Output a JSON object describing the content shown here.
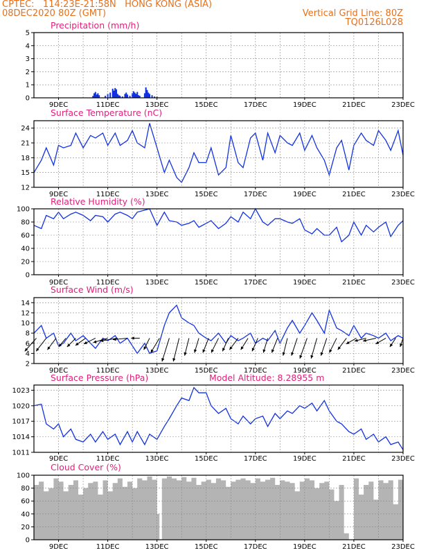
{
  "header": {
    "left_line1": "CPTEC:   114:23E-21:58N   HONG KONG (ASIA)",
    "left_line2": "08DEC2020 80Z (GMT)",
    "right_line1": "Vertical Grid Line: 80Z",
    "right_line2": "TQ0126L028"
  },
  "colors": {
    "header": "#e8701a",
    "title": "#e0207a",
    "line": "#1030e0",
    "cloud": "#b4b4b4"
  },
  "x_axis": {
    "start_day": 8.0,
    "end_day": 23.0,
    "tick_labels": [
      "9DEC",
      "11DEC",
      "13DEC",
      "15DEC",
      "17DEC",
      "19DEC",
      "21DEC",
      "23DEC"
    ],
    "tick_days": [
      9,
      11,
      13,
      15,
      17,
      19,
      21,
      23
    ]
  },
  "chart_data": [
    {
      "id": "precip",
      "type": "bar",
      "title": "Precipitation (mm/h)",
      "ylim": [
        0,
        5
      ],
      "yticks": [
        0,
        1,
        2,
        3,
        4,
        5
      ],
      "x": [
        10.4,
        10.45,
        10.5,
        10.55,
        10.6,
        10.65,
        10.9,
        11.0,
        11.1,
        11.2,
        11.25,
        11.3,
        11.35,
        11.4,
        11.45,
        11.5,
        11.6,
        11.7,
        11.75,
        11.8,
        11.9,
        12.0,
        12.05,
        12.1,
        12.15,
        12.2,
        12.25,
        12.3,
        12.5,
        12.55,
        12.6,
        12.65,
        12.7,
        12.8,
        12.9,
        13.0
      ],
      "values": [
        0.15,
        0.35,
        0.45,
        0.25,
        0.35,
        0.2,
        0.15,
        0.3,
        0.4,
        0.7,
        0.55,
        0.75,
        0.65,
        0.3,
        0.2,
        0.15,
        0.1,
        0.3,
        0.4,
        0.25,
        0.15,
        0.35,
        0.5,
        0.4,
        0.3,
        0.45,
        0.2,
        0.15,
        0.35,
        0.8,
        0.6,
        0.4,
        0.3,
        0.2,
        0.1,
        0.1
      ]
    },
    {
      "id": "temp",
      "type": "line",
      "title": "Surface Temperature (nC)",
      "ylim": [
        12,
        25.5
      ],
      "yticks": [
        12,
        15,
        18,
        21,
        24
      ],
      "x": [
        8.0,
        8.3,
        8.5,
        8.8,
        9.0,
        9.2,
        9.5,
        9.7,
        10.0,
        10.3,
        10.5,
        10.8,
        11.0,
        11.3,
        11.5,
        11.8,
        12.0,
        12.2,
        12.5,
        12.7,
        13.0,
        13.3,
        13.5,
        13.8,
        14.0,
        14.3,
        14.5,
        14.7,
        15.0,
        15.2,
        15.5,
        15.8,
        16.0,
        16.3,
        16.5,
        16.8,
        17.0,
        17.3,
        17.5,
        17.8,
        18.0,
        18.3,
        18.5,
        18.8,
        19.0,
        19.3,
        19.5,
        19.8,
        20.0,
        20.3,
        20.5,
        20.8,
        21.0,
        21.3,
        21.5,
        21.8,
        22.0,
        22.3,
        22.5,
        22.8,
        23.0
      ],
      "values": [
        15.0,
        17.5,
        20.0,
        16.5,
        20.5,
        20.0,
        20.5,
        23.0,
        20.0,
        22.5,
        22.0,
        23.0,
        20.5,
        23.0,
        20.5,
        21.5,
        23.5,
        21.0,
        20.0,
        25.0,
        20.0,
        15.0,
        17.5,
        14.0,
        13.0,
        16.0,
        19.0,
        17.0,
        17.0,
        20.0,
        14.5,
        16.0,
        22.5,
        17.0,
        16.0,
        22.0,
        23.0,
        17.5,
        23.0,
        19.0,
        22.5,
        21.0,
        20.5,
        23.0,
        19.5,
        22.5,
        20.0,
        17.5,
        14.5,
        20.0,
        21.5,
        15.5,
        20.5,
        23.0,
        21.5,
        20.5,
        23.5,
        21.5,
        19.5,
        23.5,
        18.5
      ]
    },
    {
      "id": "rh",
      "type": "line",
      "title": "Relative Humidity (%)",
      "ylim": [
        0,
        100
      ],
      "yticks": [
        0,
        20,
        40,
        60,
        80,
        100
      ],
      "x": [
        8.0,
        8.3,
        8.5,
        8.8,
        9.0,
        9.2,
        9.5,
        9.7,
        10.0,
        10.3,
        10.5,
        10.8,
        11.0,
        11.3,
        11.5,
        11.8,
        12.0,
        12.2,
        12.5,
        12.7,
        13.0,
        13.3,
        13.5,
        13.8,
        14.0,
        14.3,
        14.5,
        14.7,
        15.0,
        15.2,
        15.5,
        15.8,
        16.0,
        16.3,
        16.5,
        16.8,
        17.0,
        17.3,
        17.5,
        17.8,
        18.0,
        18.3,
        18.5,
        18.8,
        19.0,
        19.3,
        19.5,
        19.8,
        20.0,
        20.3,
        20.5,
        20.8,
        21.0,
        21.3,
        21.5,
        21.8,
        22.0,
        22.3,
        22.5,
        22.8,
        23.0
      ],
      "values": [
        75,
        70,
        90,
        85,
        95,
        85,
        92,
        95,
        90,
        82,
        90,
        88,
        80,
        92,
        95,
        90,
        85,
        95,
        98,
        100,
        75,
        95,
        82,
        80,
        75,
        78,
        82,
        72,
        78,
        82,
        70,
        78,
        88,
        80,
        95,
        85,
        100,
        80,
        75,
        85,
        85,
        80,
        78,
        85,
        68,
        62,
        70,
        60,
        60,
        72,
        50,
        60,
        80,
        60,
        75,
        65,
        72,
        80,
        58,
        75,
        82
      ]
    },
    {
      "id": "wind",
      "type": "line",
      "title": "Surface Wind (m/s)",
      "ylim": [
        2,
        15
      ],
      "yticks": [
        2,
        4,
        6,
        8,
        10,
        12,
        14
      ],
      "x": [
        8.0,
        8.3,
        8.5,
        8.8,
        9.0,
        9.2,
        9.5,
        9.7,
        10.0,
        10.3,
        10.5,
        10.8,
        11.0,
        11.3,
        11.5,
        11.8,
        12.0,
        12.2,
        12.5,
        12.7,
        13.0,
        13.3,
        13.5,
        13.8,
        14.0,
        14.3,
        14.5,
        14.7,
        15.0,
        15.2,
        15.5,
        15.8,
        16.0,
        16.3,
        16.5,
        16.8,
        17.0,
        17.3,
        17.5,
        17.8,
        18.0,
        18.3,
        18.5,
        18.8,
        19.0,
        19.3,
        19.5,
        19.8,
        20.0,
        20.3,
        20.5,
        20.8,
        21.0,
        21.3,
        21.5,
        21.8,
        22.0,
        22.3,
        22.5,
        22.8,
        23.0
      ],
      "values": [
        8.0,
        9.5,
        7.0,
        8.0,
        5.5,
        6.0,
        8.0,
        6.5,
        7.5,
        6.0,
        5.0,
        7.0,
        6.5,
        7.5,
        6.0,
        7.0,
        5.5,
        4.0,
        6.0,
        4.0,
        4.5,
        9.5,
        12.0,
        13.5,
        11.0,
        10.0,
        9.5,
        8.0,
        7.0,
        6.5,
        8.0,
        6.0,
        7.5,
        6.5,
        7.0,
        8.0,
        6.0,
        7.0,
        6.5,
        8.5,
        6.0,
        9.0,
        10.5,
        8.0,
        9.5,
        12.0,
        10.5,
        8.0,
        12.5,
        9.0,
        8.5,
        7.5,
        9.5,
        7.0,
        8.0,
        7.5,
        7.0,
        8.0,
        6.5,
        7.5,
        7.0
      ]
    },
    {
      "id": "pressure",
      "type": "line",
      "title": "Surface Pressure (hPa)",
      "subtitle": "Model Altitude: 8.28955 m",
      "ylim": [
        1011,
        1024
      ],
      "yticks": [
        1011,
        1014,
        1017,
        1020,
        1023
      ],
      "x": [
        8.0,
        8.3,
        8.5,
        8.8,
        9.0,
        9.2,
        9.5,
        9.7,
        10.0,
        10.3,
        10.5,
        10.8,
        11.0,
        11.3,
        11.5,
        11.8,
        12.0,
        12.2,
        12.5,
        12.7,
        13.0,
        13.3,
        13.5,
        13.8,
        14.0,
        14.3,
        14.5,
        14.7,
        15.0,
        15.2,
        15.5,
        15.8,
        16.0,
        16.3,
        16.5,
        16.8,
        17.0,
        17.3,
        17.5,
        17.8,
        18.0,
        18.3,
        18.5,
        18.8,
        19.0,
        19.3,
        19.5,
        19.8,
        20.0,
        20.3,
        20.5,
        20.8,
        21.0,
        21.3,
        21.5,
        21.8,
        22.0,
        22.3,
        22.5,
        22.8,
        23.0
      ],
      "values": [
        1020,
        1020.3,
        1016.5,
        1015.5,
        1016.5,
        1014.0,
        1015.5,
        1013.5,
        1013.0,
        1014.5,
        1013.0,
        1015.0,
        1013.5,
        1014.5,
        1012.5,
        1015.0,
        1013.0,
        1015.0,
        1012.5,
        1014.5,
        1013.5,
        1016.0,
        1017.5,
        1020.0,
        1021.5,
        1021.0,
        1023.5,
        1022.5,
        1022.5,
        1020.0,
        1018.5,
        1019.5,
        1017.5,
        1016.5,
        1018.0,
        1016.5,
        1017.5,
        1018.0,
        1016.0,
        1018.5,
        1017.5,
        1019.0,
        1018.5,
        1020.0,
        1019.5,
        1020.5,
        1019.0,
        1021.0,
        1019.0,
        1017.0,
        1016.5,
        1015.0,
        1014.5,
        1015.5,
        1013.5,
        1014.5,
        1013.0,
        1014.0,
        1012.5,
        1013.0,
        1011.5
      ]
    },
    {
      "id": "cloud",
      "type": "area",
      "title": "Cloud Cover (%)",
      "ylim": [
        0,
        100
      ],
      "yticks": [
        0,
        20,
        40,
        60,
        80,
        100
      ],
      "x": [
        8.0,
        8.2,
        8.4,
        8.6,
        8.8,
        9.0,
        9.2,
        9.4,
        9.6,
        9.8,
        10.0,
        10.2,
        10.4,
        10.6,
        10.8,
        11.0,
        11.2,
        11.4,
        11.6,
        11.8,
        12.0,
        12.2,
        12.4,
        12.6,
        12.8,
        13.0,
        13.1,
        13.2,
        13.4,
        13.6,
        13.8,
        14.0,
        14.2,
        14.4,
        14.6,
        14.8,
        15.0,
        15.2,
        15.4,
        15.6,
        15.8,
        16.0,
        16.2,
        16.4,
        16.6,
        16.8,
        17.0,
        17.2,
        17.4,
        17.6,
        17.8,
        18.0,
        18.2,
        18.4,
        18.6,
        18.8,
        19.0,
        19.2,
        19.4,
        19.6,
        19.8,
        20.0,
        20.2,
        20.4,
        20.6,
        20.8,
        21.0,
        21.2,
        21.4,
        21.6,
        21.8,
        22.0,
        22.2,
        22.4,
        22.6,
        22.8,
        23.0
      ],
      "values": [
        85,
        90,
        75,
        80,
        95,
        90,
        75,
        85,
        92,
        70,
        80,
        88,
        90,
        70,
        92,
        75,
        88,
        95,
        82,
        90,
        80,
        95,
        92,
        98,
        93,
        40,
        0,
        95,
        98,
        95,
        92,
        97,
        90,
        96,
        85,
        90,
        93,
        88,
        95,
        92,
        82,
        90,
        93,
        95,
        92,
        88,
        95,
        90,
        93,
        96,
        85,
        92,
        90,
        88,
        75,
        90,
        95,
        92,
        80,
        88,
        90,
        78,
        60,
        85,
        10,
        0,
        95,
        70,
        85,
        90,
        62,
        92,
        88,
        92,
        55,
        93,
        95
      ]
    }
  ],
  "wind_arrows": {
    "x": [
      8.1,
      8.5,
      8.9,
      9.3,
      9.7,
      10.1,
      10.5,
      11.0,
      11.4,
      11.8,
      12.3,
      12.7,
      13.1,
      13.5,
      13.9,
      14.3,
      14.7,
      15.1,
      15.5,
      15.9,
      16.3,
      16.7,
      17.1,
      17.5,
      17.9,
      18.3,
      18.7,
      19.1,
      19.5,
      19.9,
      20.3,
      20.7,
      21.1,
      21.5,
      21.9,
      22.3,
      22.7,
      23.0
    ],
    "u": [
      -4,
      -3.5,
      -3,
      -2.5,
      -3,
      -3.5,
      -4,
      -5,
      -6,
      -5,
      -3,
      -2,
      -3,
      -2.5,
      -2,
      -1.5,
      -1.5,
      -2,
      -2.5,
      -2,
      -3,
      -2.5,
      -2,
      -1.5,
      -2,
      -1.5,
      -2,
      -2.5,
      -2,
      -2,
      -2.5,
      -3,
      -3.5,
      -4,
      -4.5,
      -3.5,
      -2,
      -1
    ],
    "v": [
      -4.5,
      -4.5,
      -4,
      -3,
      -3,
      -2.5,
      -2,
      -1.5,
      -1,
      -0.5,
      0,
      -4,
      -5,
      -8,
      -8,
      -6,
      -5,
      -5,
      -5,
      -4.5,
      -4,
      -4,
      -4.5,
      -5,
      -5,
      -6,
      -6,
      -7,
      -7,
      -6,
      -5,
      -4,
      -2,
      -1,
      -1,
      -2,
      -3,
      -3
    ]
  }
}
